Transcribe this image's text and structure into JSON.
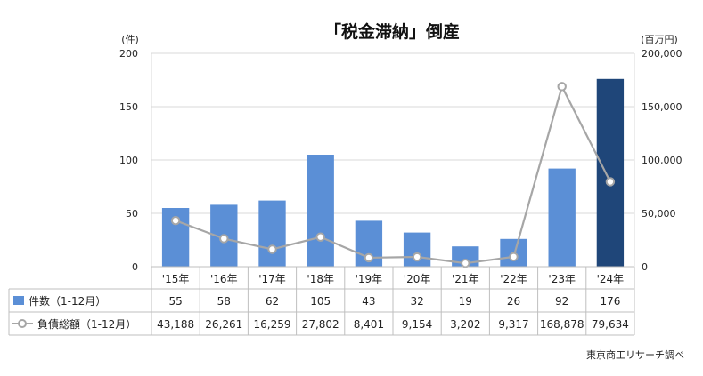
{
  "chart_data": {
    "type": "bar+line",
    "title": "「税金滞納」倒産",
    "categories": [
      "'15年",
      "'16年",
      "'17年",
      "'18年",
      "'19年",
      "'20年",
      "'21年",
      "'22年",
      "'23年",
      "'24年"
    ],
    "left_axis": {
      "unit_label": "(件)",
      "min": 0,
      "max": 200,
      "ticks": [
        0,
        50,
        100,
        150,
        200
      ]
    },
    "right_axis": {
      "unit_label": "(百万円)",
      "min": 0,
      "max": 200000,
      "ticks": [
        0,
        50000,
        100000,
        150000,
        200000
      ],
      "tick_labels": [
        "0",
        "50,000",
        "100,000",
        "150,000",
        "200,000"
      ]
    },
    "series": [
      {
        "name": "件数（1-12月）",
        "type": "bar",
        "axis": "left",
        "values": [
          55,
          58,
          62,
          105,
          43,
          32,
          19,
          26,
          92,
          176
        ],
        "labels": [
          "55",
          "58",
          "62",
          "105",
          "43",
          "32",
          "19",
          "26",
          "92",
          "176"
        ],
        "color": "#5b8fd6",
        "highlight_color": "#1f4679",
        "highlight_index": 9
      },
      {
        "name": "負債総額（1-12月）",
        "type": "line",
        "axis": "right",
        "values": [
          43188,
          26261,
          16259,
          27802,
          8401,
          9154,
          3202,
          9317,
          168878,
          79634
        ],
        "labels": [
          "43,188",
          "26,261",
          "16,259",
          "27,802",
          "8,401",
          "9,154",
          "3,202",
          "9,317",
          "168,878",
          "79,634"
        ],
        "color": "#a6a6a6"
      }
    ],
    "grid": true,
    "legend": "table-left"
  },
  "source": "東京商工リサーチ調べ"
}
